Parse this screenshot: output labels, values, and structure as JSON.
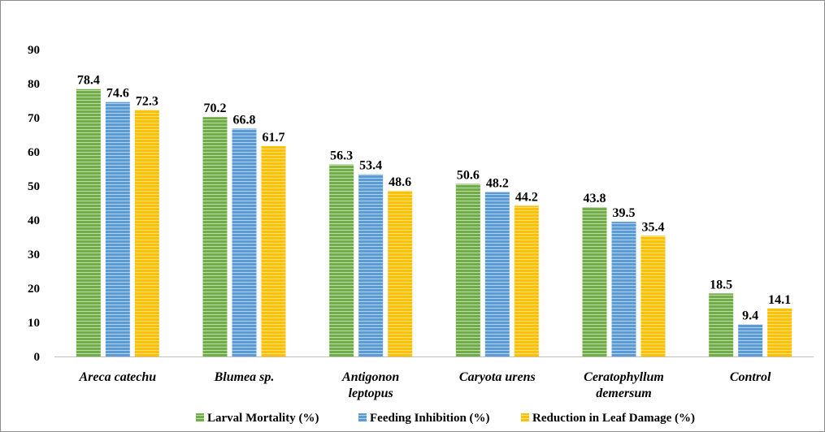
{
  "chart_data": {
    "type": "bar",
    "title": "",
    "xlabel": "",
    "ylabel": "",
    "ylim": [
      0,
      90
    ],
    "yticks": [
      0,
      10,
      20,
      30,
      40,
      50,
      60,
      70,
      80,
      90
    ],
    "grid": false,
    "legend_position": "bottom",
    "categories": [
      [
        "Areca catechu"
      ],
      [
        "Blumea sp."
      ],
      [
        "Antigonon",
        "leptopus"
      ],
      [
        "Caryota urens"
      ],
      [
        "Ceratophyllum",
        "demersum"
      ],
      [
        "Control"
      ]
    ],
    "series": [
      {
        "name": "Larval Mortality (%)",
        "color": "#70ad47",
        "values": [
          78.4,
          70.2,
          56.3,
          50.6,
          43.8,
          18.5
        ]
      },
      {
        "name": "Feeding Inhibition (%)",
        "color": "#5b9bd5",
        "values": [
          74.6,
          66.8,
          53.4,
          48.2,
          39.5,
          9.4
        ]
      },
      {
        "name": "Reduction in Leaf Damage (%)",
        "color": "#ffc000",
        "values": [
          72.3,
          61.7,
          48.6,
          44.2,
          35.4,
          14.1
        ]
      }
    ]
  }
}
